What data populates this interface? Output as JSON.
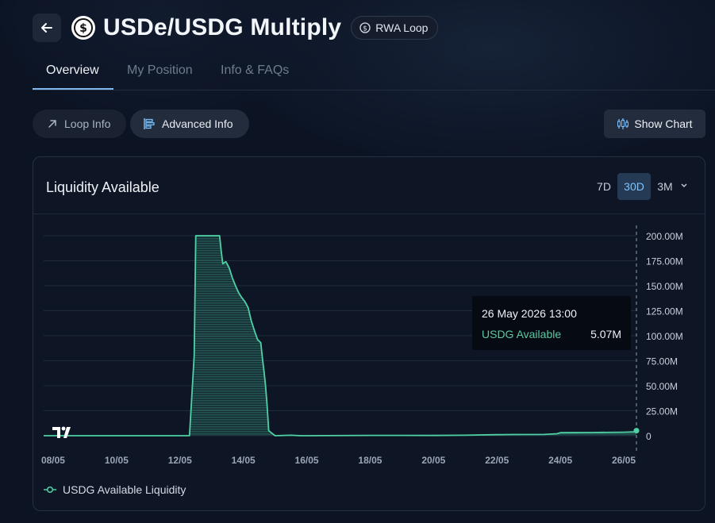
{
  "header": {
    "title": "USDe/USDG Multiply",
    "badge_label": "RWA Loop"
  },
  "tabs": [
    {
      "label": "Overview",
      "active": true
    },
    {
      "label": "My Position",
      "active": false
    },
    {
      "label": "Info & FAQs",
      "active": false
    }
  ],
  "toolbar": {
    "loop_info_label": "Loop Info",
    "advanced_info_label": "Advanced Info",
    "show_chart_label": "Show Chart"
  },
  "card": {
    "title": "Liquidity Available",
    "ranges": [
      "7D",
      "30D",
      "3M"
    ],
    "selected_range": "30D"
  },
  "tooltip": {
    "date": "26 May 2026 13:00",
    "label": "USDG Available",
    "value": "5.07M"
  },
  "colors": {
    "accent": "#4fd1a5",
    "background": "#0c1424"
  },
  "chart_data": {
    "type": "area",
    "x_tick_labels": [
      "08/05",
      "10/05",
      "12/05",
      "14/05",
      "16/05",
      "18/05",
      "20/05",
      "22/05",
      "24/05",
      "26/05"
    ],
    "y_tick_labels": [
      "200.00M",
      "175.00M",
      "150.00M",
      "125.00M",
      "100.00M",
      "75.00M",
      "50.00M",
      "25.00M",
      "0"
    ],
    "ylim": [
      0,
      200
    ],
    "xlim": [
      7.7,
      26.4
    ],
    "legend": "bottom-left",
    "series": [
      {
        "name": "USDG Available Liquidity",
        "color": "#4fd1a5",
        "x": [
          7.7,
          12.3,
          12.45,
          12.5,
          13.25,
          13.3,
          13.35,
          13.45,
          13.55,
          13.65,
          13.75,
          13.85,
          13.95,
          14.05,
          14.15,
          14.25,
          14.35,
          14.45,
          14.55,
          14.6,
          14.65,
          14.7,
          14.75,
          14.8,
          15.0,
          15.5,
          15.8,
          16.0,
          18.0,
          20.0,
          21.0,
          22.0,
          22.5,
          23.5,
          23.9,
          24.0,
          25.0,
          26.0,
          26.35,
          26.4
        ],
        "y": [
          0,
          0,
          80,
          200,
          200,
          185,
          172,
          174,
          168,
          158,
          150,
          143,
          138,
          134,
          128,
          115,
          105,
          96,
          93,
          78,
          65,
          50,
          30,
          5,
          0,
          0.5,
          0,
          0,
          0.3,
          0.2,
          0.5,
          1.0,
          1.2,
          1.3,
          2.0,
          3.0,
          3.2,
          3.5,
          3.8,
          5.07
        ]
      }
    ]
  }
}
